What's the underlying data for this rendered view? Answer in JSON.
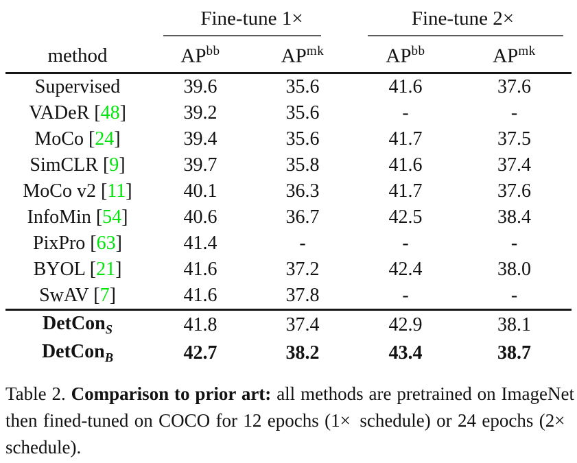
{
  "table": {
    "group_headers": [
      {
        "label": "Fine-tune 1×"
      },
      {
        "label": "Fine-tune 2×"
      }
    ],
    "method_header": "method",
    "col_headers": [
      {
        "base": "AP",
        "sup": "bb"
      },
      {
        "base": "AP",
        "sup": "mk"
      },
      {
        "base": "AP",
        "sup": "bb"
      },
      {
        "base": "AP",
        "sup": "mk"
      }
    ],
    "cite_open": "[",
    "cite_close": "]",
    "rows": [
      {
        "method": "Supervised",
        "cite": "",
        "values": [
          "39.6",
          "35.6",
          "41.6",
          "37.6"
        ]
      },
      {
        "method": "VADeR",
        "cite": "48",
        "values": [
          "39.2",
          "35.6",
          "-",
          "-"
        ]
      },
      {
        "method": "MoCo",
        "cite": "24",
        "values": [
          "39.4",
          "35.6",
          "41.7",
          "37.5"
        ]
      },
      {
        "method": "SimCLR",
        "cite": "9",
        "values": [
          "39.7",
          "35.8",
          "41.6",
          "37.4"
        ]
      },
      {
        "method": "MoCo v2",
        "cite": "11",
        "values": [
          "40.1",
          "36.3",
          "41.7",
          "37.6"
        ]
      },
      {
        "method": "InfoMin",
        "cite": "54",
        "values": [
          "40.6",
          "36.7",
          "42.5",
          "38.4"
        ]
      },
      {
        "method": "PixPro",
        "cite": "63",
        "values": [
          "41.4",
          "-",
          "-",
          "-"
        ]
      },
      {
        "method": "BYOL",
        "cite": "21",
        "values": [
          "41.6",
          "37.2",
          "42.4",
          "38.0"
        ]
      },
      {
        "method": "SwAV",
        "cite": "7",
        "values": [
          "41.6",
          "37.8",
          "-",
          "-"
        ]
      }
    ],
    "detcon_rows": [
      {
        "name": "DetCon",
        "sub": "S",
        "bold_values": false,
        "values": [
          "41.8",
          "37.4",
          "42.9",
          "38.1"
        ]
      },
      {
        "name": "DetCon",
        "sub": "B",
        "bold_values": true,
        "values": [
          "42.7",
          "38.2",
          "43.4",
          "38.7"
        ]
      }
    ]
  },
  "caption": {
    "prefix": "Table 2. ",
    "heading": "Comparison to prior art:",
    "body": " all methods are pretrained on ImageNet then fined-tuned on COCO for 12 epochs (1× schedule) or 24 epochs (2× schedule)."
  },
  "colors": {
    "citation_green": "#00e409",
    "rule_heavy": "#161616",
    "rule_light": "#5c5c5c"
  }
}
